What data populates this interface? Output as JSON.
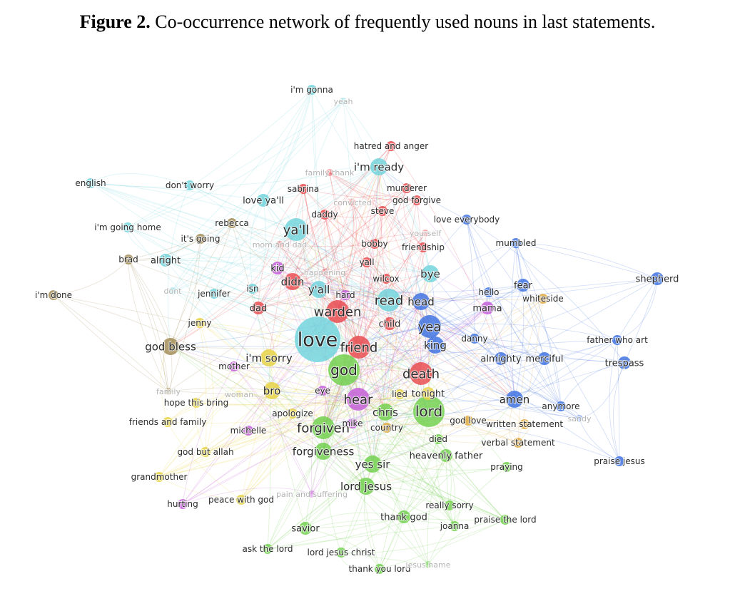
{
  "caption": {
    "label": "Figure 2.",
    "text": "Co-occurrence network of frequently used nouns in last statements."
  },
  "clusters": {
    "cyan": "#6fd3dc",
    "red": "#e8484c",
    "blue": "#3b6fe0",
    "purple": "#c35ad8",
    "green": "#6fcf4b",
    "yellow": "#e6d240",
    "olive": "#a08a52",
    "orange": "#e0a83a"
  },
  "nodes": [
    {
      "label": "i'm gonna",
      "cluster": "cyan",
      "size": 1
    },
    {
      "label": "yeah",
      "cluster": "cyan",
      "size": 0
    },
    {
      "label": "hatred and anger",
      "cluster": "red",
      "size": 1
    },
    {
      "label": "family thank",
      "cluster": "red",
      "size": 0
    },
    {
      "label": "i'm ready",
      "cluster": "cyan",
      "size": 3
    },
    {
      "label": "english",
      "cluster": "cyan",
      "size": 1
    },
    {
      "label": "don't worry",
      "cluster": "cyan",
      "size": 1
    },
    {
      "label": "sabrina",
      "cluster": "red",
      "size": 1
    },
    {
      "label": "murderer",
      "cluster": "red",
      "size": 1
    },
    {
      "label": "love ya'll",
      "cluster": "cyan",
      "size": 2
    },
    {
      "label": "convicted",
      "cluster": "red",
      "size": 0
    },
    {
      "label": "god forgive",
      "cluster": "red",
      "size": 1
    },
    {
      "label": "steve",
      "cluster": "red",
      "size": 1
    },
    {
      "label": "daddy",
      "cluster": "red",
      "size": 1
    },
    {
      "label": "love everybody",
      "cluster": "blue",
      "size": 1
    },
    {
      "label": "rebecca",
      "cluster": "olive",
      "size": 1
    },
    {
      "label": "i'm going home",
      "cluster": "cyan",
      "size": 1
    },
    {
      "label": "ya'll",
      "cluster": "cyan",
      "size": 4
    },
    {
      "label": "yourself",
      "cluster": "red",
      "size": 0
    },
    {
      "label": "it's going",
      "cluster": "olive",
      "size": 1
    },
    {
      "label": "mom and dad",
      "cluster": "red",
      "size": 0
    },
    {
      "label": "bobby",
      "cluster": "red",
      "size": 1
    },
    {
      "label": "friendship",
      "cluster": "red",
      "size": 1
    },
    {
      "label": "mumbled",
      "cluster": "blue",
      "size": 1
    },
    {
      "label": "brad",
      "cluster": "olive",
      "size": 1
    },
    {
      "label": "alright",
      "cluster": "cyan",
      "size": 2
    },
    {
      "label": "kid",
      "cluster": "purple",
      "size": 2
    },
    {
      "label": "happening",
      "cluster": "red",
      "size": 0
    },
    {
      "label": "yall",
      "cluster": "red",
      "size": 1
    },
    {
      "label": "bye",
      "cluster": "cyan",
      "size": 3
    },
    {
      "label": "shepherd",
      "cluster": "blue",
      "size": 2
    },
    {
      "label": "i'm done",
      "cluster": "olive",
      "size": 1
    },
    {
      "label": "dont",
      "cluster": "cyan",
      "size": 0
    },
    {
      "label": "jennifer",
      "cluster": "cyan",
      "size": 1
    },
    {
      "label": "isn",
      "cluster": "cyan",
      "size": 1
    },
    {
      "label": "didn",
      "cluster": "red",
      "size": 3
    },
    {
      "label": "y'all",
      "cluster": "cyan",
      "size": 3
    },
    {
      "label": "wilcox",
      "cluster": "red",
      "size": 1
    },
    {
      "label": "hard",
      "cluster": "purple",
      "size": 1
    },
    {
      "label": "read",
      "cluster": "cyan",
      "size": 4
    },
    {
      "label": "head",
      "cluster": "blue",
      "size": 3
    },
    {
      "label": "fear",
      "cluster": "blue",
      "size": 2
    },
    {
      "label": "hello",
      "cluster": "blue",
      "size": 1
    },
    {
      "label": "whiteside",
      "cluster": "orange",
      "size": 1
    },
    {
      "label": "mama",
      "cluster": "purple",
      "size": 2
    },
    {
      "label": "dad",
      "cluster": "red",
      "size": 2
    },
    {
      "label": "warden",
      "cluster": "red",
      "size": 4
    },
    {
      "label": "child",
      "cluster": "red",
      "size": 2
    },
    {
      "label": "jenny",
      "cluster": "yellow",
      "size": 1
    },
    {
      "label": "yea",
      "cluster": "blue",
      "size": 4
    },
    {
      "label": "love",
      "cluster": "cyan",
      "size": 6
    },
    {
      "label": "friend",
      "cluster": "red",
      "size": 4
    },
    {
      "label": "danny",
      "cluster": "blue",
      "size": 1
    },
    {
      "label": "king",
      "cluster": "blue",
      "size": 3
    },
    {
      "label": "father who art",
      "cluster": "blue",
      "size": 1
    },
    {
      "label": "god bless",
      "cluster": "olive",
      "size": 3
    },
    {
      "label": "almighty",
      "cluster": "blue",
      "size": 2
    },
    {
      "label": "merciful",
      "cluster": "blue",
      "size": 2
    },
    {
      "label": "i'm sorry",
      "cluster": "yellow",
      "size": 3
    },
    {
      "label": "trespass",
      "cluster": "blue",
      "size": 2
    },
    {
      "label": "mother",
      "cluster": "purple",
      "size": 1
    },
    {
      "label": "god",
      "cluster": "green",
      "size": 5
    },
    {
      "label": "death",
      "cluster": "red",
      "size": 4
    },
    {
      "label": "family",
      "cluster": "olive",
      "size": 0
    },
    {
      "label": "woman",
      "cluster": "yellow",
      "size": 0
    },
    {
      "label": "bro",
      "cluster": "yellow",
      "size": 3
    },
    {
      "label": "eye",
      "cluster": "purple",
      "size": 1
    },
    {
      "label": "hear",
      "cluster": "purple",
      "size": 4
    },
    {
      "label": "lied",
      "cluster": "yellow",
      "size": 1
    },
    {
      "label": "tonight",
      "cluster": "yellow",
      "size": 2
    },
    {
      "label": "amen",
      "cluster": "blue",
      "size": 3
    },
    {
      "label": "hope this bring",
      "cluster": "yellow",
      "size": 1
    },
    {
      "label": "apologize",
      "cluster": "yellow",
      "size": 1
    },
    {
      "label": "chris",
      "cluster": "green",
      "size": 3
    },
    {
      "label": "lord",
      "cluster": "green",
      "size": 5
    },
    {
      "label": "anymore",
      "cluster": "blue",
      "size": 1
    },
    {
      "label": "sandy",
      "cluster": "blue",
      "size": 0
    },
    {
      "label": "friends and family",
      "cluster": "yellow",
      "size": 1
    },
    {
      "label": "forgiven",
      "cluster": "green",
      "size": 4
    },
    {
      "label": "mike",
      "cluster": "purple",
      "size": 1
    },
    {
      "label": "country",
      "cluster": "orange",
      "size": 1
    },
    {
      "label": "god love",
      "cluster": "orange",
      "size": 1
    },
    {
      "label": "written statement",
      "cluster": "orange",
      "size": 1
    },
    {
      "label": "michelle",
      "cluster": "purple",
      "size": 1
    },
    {
      "label": "died",
      "cluster": "green",
      "size": 1
    },
    {
      "label": "god but allah",
      "cluster": "yellow",
      "size": 1
    },
    {
      "label": "verbal statement",
      "cluster": "orange",
      "size": 1
    },
    {
      "label": "forgiveness",
      "cluster": "green",
      "size": 3
    },
    {
      "label": "heavenly father",
      "cluster": "green",
      "size": 2
    },
    {
      "label": "praise jesus",
      "cluster": "blue",
      "size": 1
    },
    {
      "label": "yes sir",
      "cluster": "green",
      "size": 3
    },
    {
      "label": "praying",
      "cluster": "green",
      "size": 1
    },
    {
      "label": "grandmother",
      "cluster": "yellow",
      "size": 1
    },
    {
      "label": "lord jesus",
      "cluster": "green",
      "size": 3
    },
    {
      "label": "pain and suffering",
      "cluster": "purple",
      "size": 0
    },
    {
      "label": "peace with god",
      "cluster": "yellow",
      "size": 1
    },
    {
      "label": "hurting",
      "cluster": "purple",
      "size": 1
    },
    {
      "label": "really sorry",
      "cluster": "green",
      "size": 1
    },
    {
      "label": "thank god",
      "cluster": "green",
      "size": 2
    },
    {
      "label": "praise the lord",
      "cluster": "green",
      "size": 1
    },
    {
      "label": "joanna",
      "cluster": "green",
      "size": 1
    },
    {
      "label": "savior",
      "cluster": "green",
      "size": 2
    },
    {
      "label": "ask the lord",
      "cluster": "green",
      "size": 1
    },
    {
      "label": "lord jesus christ",
      "cluster": "green",
      "size": 1
    },
    {
      "label": "thank you lord",
      "cluster": "green",
      "size": 1
    },
    {
      "label": "jesus name",
      "cluster": "green",
      "size": 0
    }
  ]
}
